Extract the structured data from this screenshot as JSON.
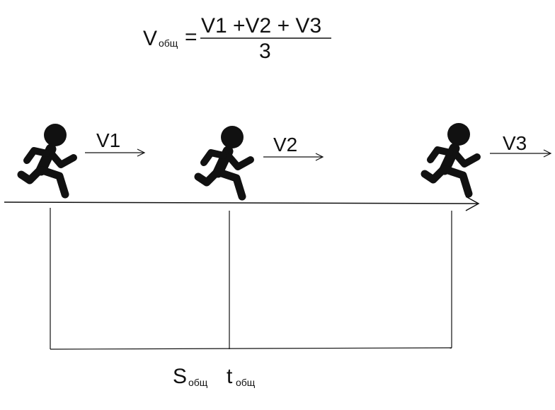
{
  "formula": {
    "lhs": "V",
    "lhs_sub": "общ",
    "equals": "=",
    "numerator": "V1 +V2 + V3",
    "denominator": "3"
  },
  "runners": [
    {
      "label": "V1",
      "icon": "running-man-icon"
    },
    {
      "label": "V2",
      "icon": "running-man-icon"
    },
    {
      "label": "V3",
      "icon": "running-man-icon"
    }
  ],
  "bottom": {
    "s": "S",
    "s_sub": "общ",
    "t": "t",
    "t_sub": "общ"
  },
  "colors": {
    "ink": "#111111",
    "background": "#ffffff"
  }
}
